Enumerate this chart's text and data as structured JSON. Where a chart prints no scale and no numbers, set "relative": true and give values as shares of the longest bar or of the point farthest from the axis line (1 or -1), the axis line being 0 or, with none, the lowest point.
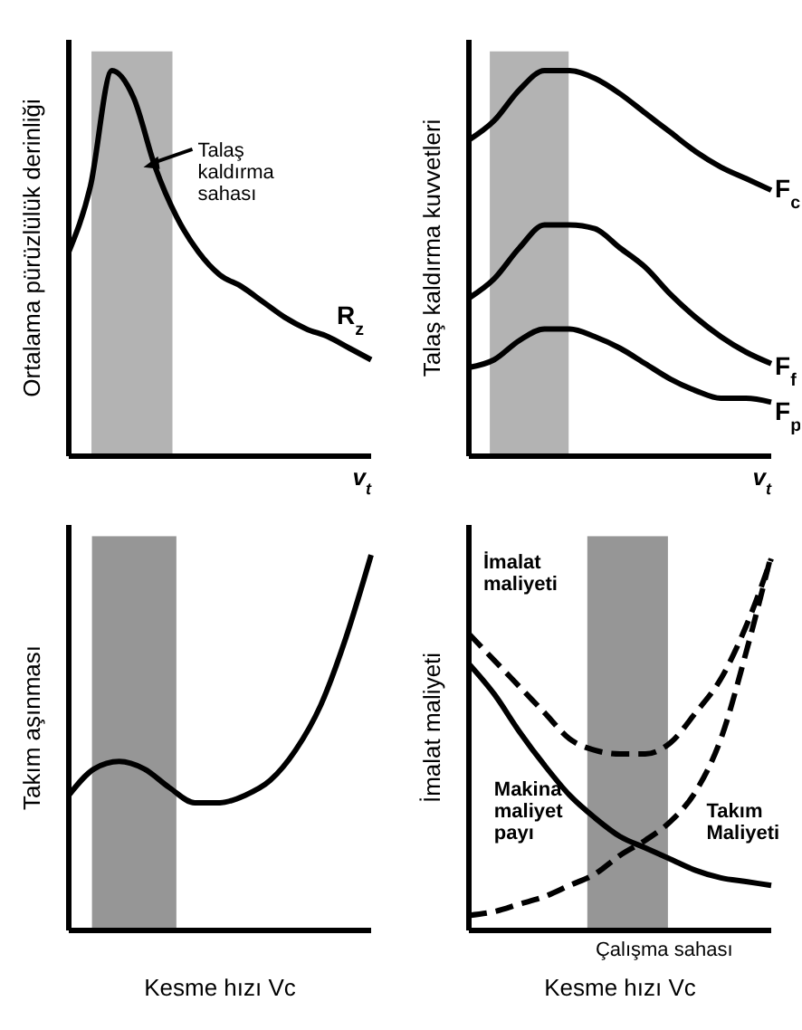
{
  "chart_data": [
    {
      "type": "line",
      "relative": true,
      "ylabel": "Ortalama pürüzlülük derinliği",
      "xlabel": "v$_{t}$",
      "marker": "none",
      "categories": [
        null,
        null,
        null,
        null,
        null,
        null,
        null,
        null,
        null,
        null,
        null,
        null,
        null,
        null,
        null
      ],
      "series": [
        {
          "name": "R$_{z}$",
          "color": "#000000",
          "values": [
            0.53,
            0.7,
            1.0,
            0.93,
            0.75,
            0.62,
            0.53,
            0.47,
            0.44,
            0.4,
            0.36,
            0.33,
            0.31,
            0.28,
            0.25
          ]
        }
      ],
      "annotations": [
        "Talaş kaldırma sahası"
      ]
    },
    {
      "type": "line",
      "relative": true,
      "ylabel": "Talaş kaldırma kuvvetleri",
      "xlabel": "v$_{t}$",
      "marker": "none",
      "categories": [
        null,
        null,
        null,
        null,
        null,
        null,
        null,
        null,
        null,
        null,
        null,
        null,
        null
      ],
      "series": [
        {
          "name": "F$_{c}$",
          "color": "#000000",
          "values": [
            0.82,
            0.87,
            0.95,
            1.0,
            1.0,
            0.98,
            0.94,
            0.89,
            0.84,
            0.79,
            0.75,
            0.72,
            0.69
          ]
        },
        {
          "name": "F$_{f}$",
          "color": "#000000",
          "values": [
            0.41,
            0.46,
            0.54,
            0.6,
            0.6,
            0.59,
            0.54,
            0.49,
            0.42,
            0.36,
            0.31,
            0.27,
            0.24
          ]
        },
        {
          "name": "F$_{p}$",
          "color": "#000000",
          "values": [
            0.23,
            0.25,
            0.3,
            0.33,
            0.33,
            0.31,
            0.28,
            0.24,
            0.2,
            0.17,
            0.15,
            0.15,
            0.14
          ]
        }
      ]
    },
    {
      "type": "line",
      "relative": true,
      "ylabel": "Takım aşınması",
      "xlabel": "Kesme hızı Vc",
      "marker": "none",
      "categories": [
        null,
        null,
        null,
        null,
        null,
        null,
        null,
        null,
        null,
        null,
        null,
        null,
        null
      ],
      "series": [
        {
          "color": "#000000",
          "values": [
            0.36,
            0.43,
            0.45,
            0.43,
            0.38,
            0.34,
            0.34,
            0.36,
            0.4,
            0.48,
            0.6,
            0.78,
            1.0
          ]
        }
      ]
    },
    {
      "type": "line",
      "relative": true,
      "ylabel": "İmalat maliyeti",
      "xlabel": "Kesme hızı Vc",
      "marker": "none",
      "categories": [
        null,
        null,
        null,
        null,
        null,
        null,
        null,
        null,
        null,
        null,
        null,
        null,
        null
      ],
      "series": [
        {
          "name": "İmalat maliyeti",
          "color": "#000000",
          "line_style": "dashed",
          "values": [
            0.79,
            0.72,
            0.65,
            0.58,
            0.51,
            0.48,
            0.47,
            0.47,
            0.5,
            0.58,
            0.67,
            0.81,
            0.99
          ]
        },
        {
          "name": "Makina maliyet payı",
          "color": "#000000",
          "line_style": "solid",
          "values": [
            0.71,
            0.63,
            0.53,
            0.44,
            0.36,
            0.3,
            0.25,
            0.22,
            0.19,
            0.16,
            0.14,
            0.13,
            0.12
          ]
        },
        {
          "name": "Takım Maliyeti",
          "color": "#000000",
          "line_style": "dashed",
          "values": [
            0.04,
            0.05,
            0.07,
            0.09,
            0.12,
            0.15,
            0.2,
            0.24,
            0.29,
            0.37,
            0.51,
            0.74,
            1.0
          ]
        }
      ],
      "annotations": [
        "Çalışma sahası"
      ]
    }
  ]
}
